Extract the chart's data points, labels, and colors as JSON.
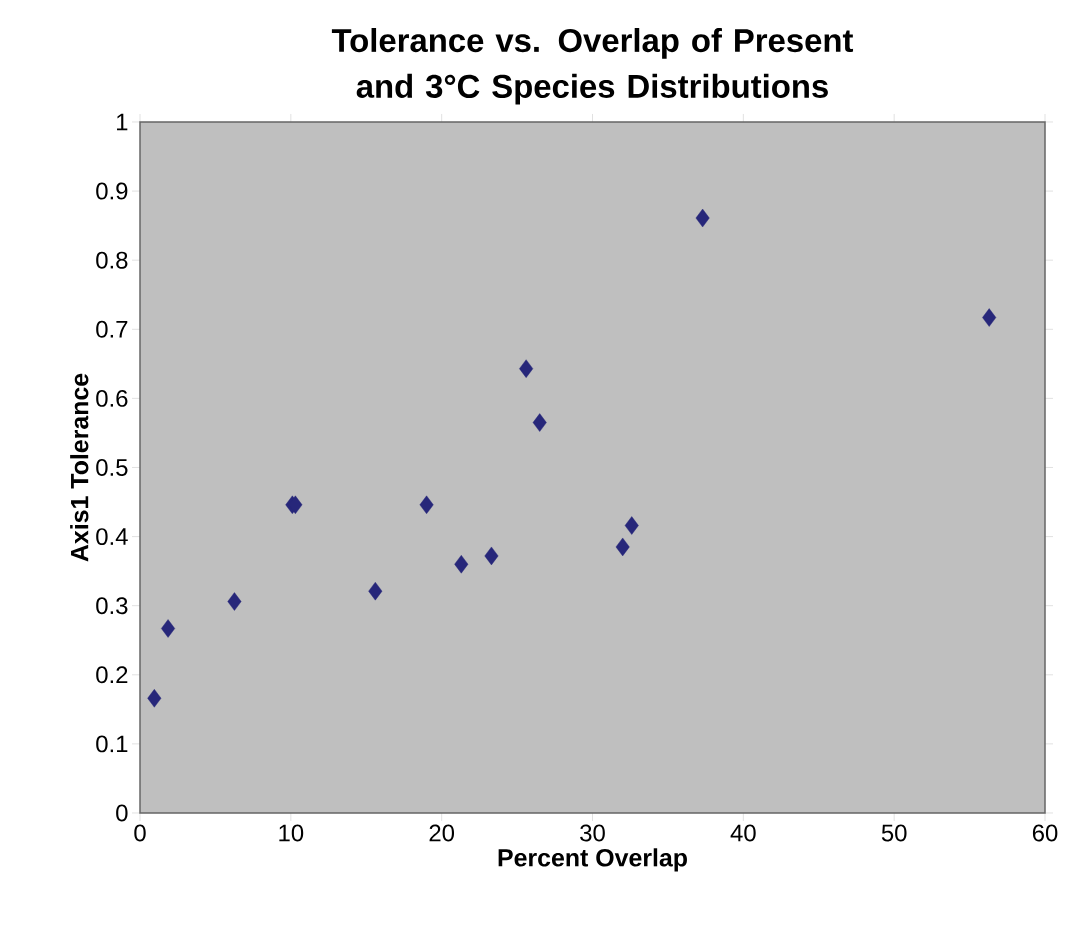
{
  "chart_data": {
    "type": "scatter",
    "title": "Tolerance vs. Overlap of Present and 3°C Species Distributions",
    "xlabel": "Percent Overlap",
    "ylabel": "Axis1 Tolerance",
    "x": [
      0.95,
      1.86,
      6.26,
      10.1,
      10.3,
      15.6,
      19.0,
      21.3,
      23.3,
      25.6,
      26.5,
      32.0,
      32.6,
      37.3,
      56.3
    ],
    "values": [
      0.166,
      0.267,
      0.306,
      0.446,
      0.446,
      0.321,
      0.446,
      0.36,
      0.372,
      0.643,
      0.565,
      0.385,
      0.416,
      0.861,
      0.717
    ],
    "color": "#27277a",
    "marker": "diamond",
    "xlim": [
      0,
      60
    ],
    "xticks": [
      0,
      10,
      20,
      30,
      40,
      50,
      60
    ],
    "ylim": [
      0,
      1
    ],
    "yticks": [
      0,
      0.1,
      0.2,
      0.3,
      0.4,
      0.5,
      0.6,
      0.7,
      0.8,
      0.9,
      1
    ]
  }
}
